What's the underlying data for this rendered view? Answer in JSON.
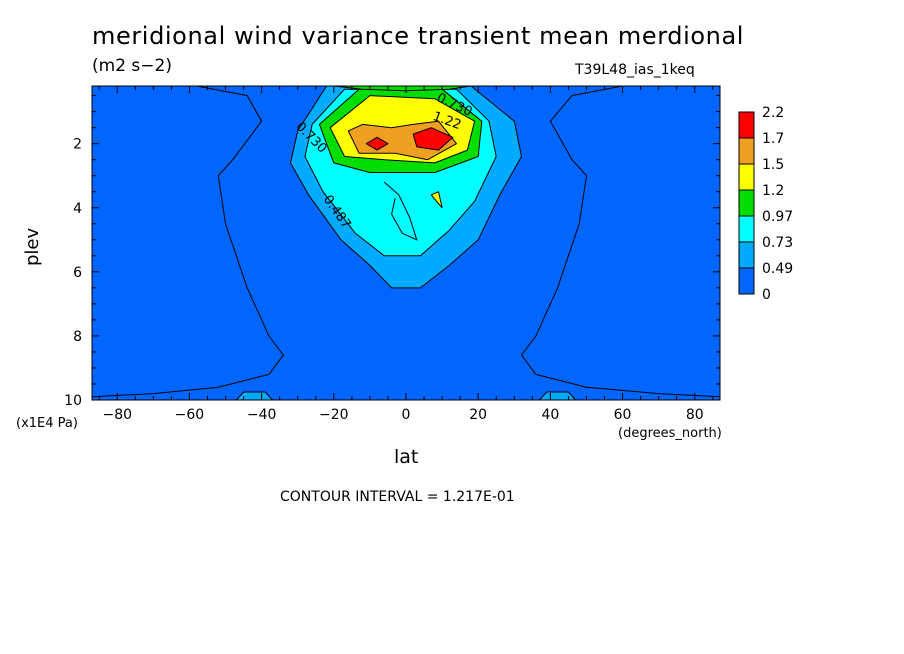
{
  "chart_data": {
    "type": "contour",
    "title": "meridional wind variance transient mean merdional",
    "units": "(m2 s−2)",
    "run_label": "T39L48_ias_1keq",
    "xlabel": "lat",
    "xunits": "(degrees_north)",
    "ylabel": "plev",
    "yunits": "(x1E4 Pa)",
    "xlim": [
      -87,
      87
    ],
    "ylim": [
      0.2,
      10
    ],
    "y_inverted": true,
    "xticks": [
      -80,
      -60,
      -40,
      -20,
      0,
      20,
      40,
      60,
      80
    ],
    "yticks": [
      2,
      4,
      6,
      8,
      10
    ],
    "contour_interval_text": "CONTOUR INTERVAL = 1.217E-01",
    "colorbar": {
      "labels": [
        "2.2",
        "1.7",
        "1.5",
        "1.2",
        "0.97",
        "0.73",
        "0.49",
        "0"
      ],
      "colors": [
        "#ff0000",
        "#f0a020",
        "#ffff00",
        "#00dd00",
        "#00ffff",
        "#00aaff",
        "#0066ff"
      ]
    },
    "contour_labels": [
      {
        "text": "0.730",
        "lat": 13,
        "plev": 0.9,
        "angle": 25
      },
      {
        "text": "1.22",
        "lat": 11,
        "plev": 1.4,
        "angle": 20
      },
      {
        "text": "0.730",
        "lat": -27,
        "plev": 1.9,
        "angle": 45
      },
      {
        "text": "0.487",
        "lat": -20,
        "plev": 4.2,
        "angle": 55
      }
    ],
    "regions": [
      {
        "level": 0,
        "points": [
          [
            -87,
            10
          ],
          [
            -87,
            0.2
          ],
          [
            87,
            0.2
          ],
          [
            87,
            10
          ]
        ]
      },
      {
        "level": 1,
        "points": [
          [
            -22,
            0.2
          ],
          [
            -30,
            1.6
          ],
          [
            -32,
            2.6
          ],
          [
            -27,
            3.6
          ],
          [
            -18,
            5.0
          ],
          [
            -10,
            5.8
          ],
          [
            -4,
            6.5
          ],
          [
            4,
            6.5
          ],
          [
            12,
            5.8
          ],
          [
            20,
            5.0
          ],
          [
            26,
            3.6
          ],
          [
            32,
            2.4
          ],
          [
            30,
            1.3
          ],
          [
            18,
            0.2
          ]
        ]
      },
      {
        "level": 1,
        "points": [
          [
            -47,
            10
          ],
          [
            -45,
            9.75
          ],
          [
            -39,
            9.75
          ],
          [
            -37,
            10
          ]
        ]
      },
      {
        "level": 1,
        "points": [
          [
            37,
            10
          ],
          [
            39,
            9.75
          ],
          [
            45,
            9.75
          ],
          [
            47,
            10
          ]
        ]
      },
      {
        "level": 2,
        "points": [
          [
            -17,
            0.3
          ],
          [
            -26,
            1.4
          ],
          [
            -28,
            2.4
          ],
          [
            -23,
            3.5
          ],
          [
            -14,
            4.8
          ],
          [
            -6,
            5.5
          ],
          [
            4,
            5.5
          ],
          [
            12,
            4.7
          ],
          [
            19,
            3.8
          ],
          [
            25,
            2.4
          ],
          [
            23,
            1.3
          ],
          [
            14,
            0.3
          ]
        ]
      },
      {
        "level": 3,
        "points": [
          [
            -13,
            0.3
          ],
          [
            -24,
            1.4
          ],
          [
            -20,
            2.6
          ],
          [
            -10,
            2.9
          ],
          [
            8,
            2.9
          ],
          [
            20,
            2.4
          ],
          [
            21,
            1.3
          ],
          [
            10,
            0.3
          ]
        ]
      },
      {
        "level": 4,
        "points": [
          [
            -10,
            0.5
          ],
          [
            -21,
            1.5
          ],
          [
            -17,
            2.4
          ],
          [
            -6,
            2.5
          ],
          [
            8,
            2.6
          ],
          [
            17,
            2.2
          ],
          [
            19,
            1.3
          ],
          [
            8,
            0.6
          ]
        ]
      },
      {
        "level": 5,
        "points": [
          [
            -16,
            1.6
          ],
          [
            -13,
            2.3
          ],
          [
            -3,
            2.3
          ],
          [
            6,
            2.5
          ],
          [
            14,
            2.0
          ],
          [
            9,
            1.3
          ],
          [
            2,
            1.4
          ],
          [
            -4,
            1.5
          ],
          [
            -12,
            1.4
          ]
        ]
      },
      {
        "level": 6,
        "points": [
          [
            2,
            1.7
          ],
          [
            7,
            1.5
          ],
          [
            13,
            1.8
          ],
          [
            9,
            2.2
          ],
          [
            3,
            2.1
          ]
        ]
      },
      {
        "level": 6,
        "points": [
          [
            -11,
            2.0
          ],
          [
            -8,
            1.8
          ],
          [
            -5,
            2.0
          ],
          [
            -8,
            2.2
          ]
        ]
      },
      {
        "level": 4,
        "points": [
          [
            7,
            3.6
          ],
          [
            9,
            3.5
          ],
          [
            10,
            4.0
          ]
        ]
      },
      {
        "level": 3,
        "points": [
          [
            -20,
            0.2
          ],
          [
            -12,
            0.3
          ],
          [
            0,
            0.35
          ],
          [
            12,
            0.3
          ],
          [
            18,
            0.2
          ]
        ]
      }
    ],
    "extra_lines": [
      [
        [
          -87,
          0.2
        ],
        [
          -58,
          0.2
        ],
        [
          -44,
          0.5
        ],
        [
          -40,
          1.3
        ],
        [
          -48,
          2.5
        ],
        [
          -52,
          3.0
        ],
        [
          -50,
          4.5
        ],
        [
          -44,
          6.5
        ],
        [
          -38,
          8.0
        ],
        [
          -34,
          8.6
        ],
        [
          -38,
          9.2
        ],
        [
          -52,
          9.6
        ],
        [
          -70,
          9.8
        ],
        [
          -87,
          9.9
        ]
      ],
      [
        [
          87,
          0.2
        ],
        [
          60,
          0.2
        ],
        [
          46,
          0.5
        ],
        [
          40,
          1.3
        ],
        [
          46,
          2.5
        ],
        [
          50,
          3.0
        ],
        [
          48,
          4.5
        ],
        [
          42,
          6.5
        ],
        [
          36,
          8.0
        ],
        [
          32,
          8.6
        ],
        [
          36,
          9.2
        ],
        [
          50,
          9.6
        ],
        [
          70,
          9.8
        ],
        [
          87,
          9.9
        ]
      ],
      [
        [
          -6,
          3.2
        ],
        [
          -2,
          3.6
        ],
        [
          1,
          4.3
        ],
        [
          3,
          5.0
        ],
        [
          -1,
          4.8
        ],
        [
          -4,
          4.2
        ],
        [
          -3,
          3.7
        ]
      ]
    ]
  }
}
